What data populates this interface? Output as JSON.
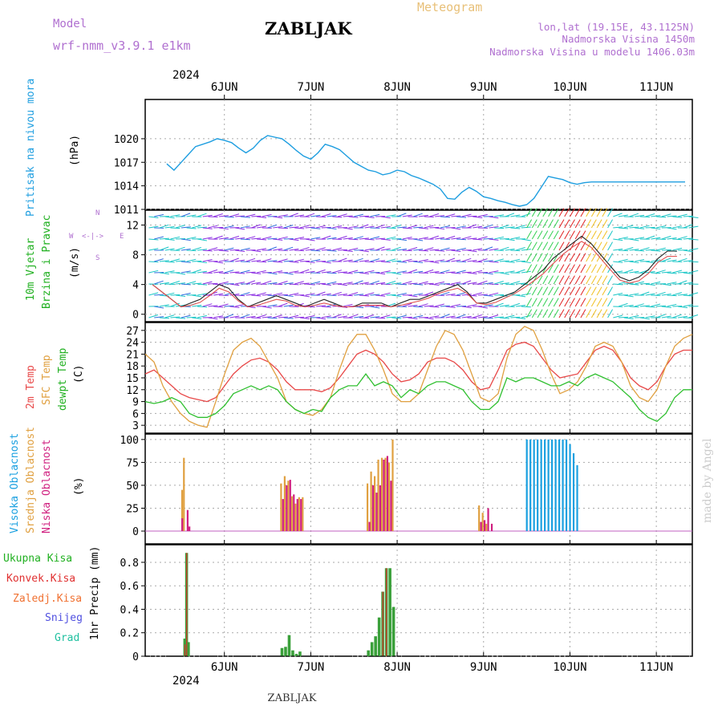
{
  "header": {
    "model_label": "Model",
    "model_name": "wrf-nmm_v3.9.1 e1km",
    "title": "ZABLJAK",
    "subtitle": "Meteogram",
    "coords": "lon,lat (19.15E, 43.1125N)",
    "altitude": "Nadmorska Visina 1450m",
    "model_altitude": "Nadmorska Visina u modelu 1406.03m",
    "year_top": "2024",
    "year_bottom": "2024",
    "footer_title": "ZABLJAK",
    "watermark": "made by Angel"
  },
  "days": [
    "6JUN",
    "7JUN",
    "8JUN",
    "9JUN",
    "10JUN",
    "11JUN"
  ],
  "colors": {
    "pressure": "#1e9ee0",
    "temp2m": "#e84848",
    "sfc": "#e0a040",
    "dew": "#30c030",
    "cloud_high": "#1aa0e0",
    "cloud_mid": "#e0a040",
    "cloud_low": "#d02080",
    "precip_total": "#3aa03a",
    "precip_conv": "#e03030",
    "grid": "#aaaaaa"
  },
  "legend": {
    "pressure": [
      "Pritisak na nivou mora",
      "(hPa)"
    ],
    "wind": [
      "10m Vjetar",
      "Brzina i Pravac",
      "(m/s)"
    ],
    "compass": [
      "N",
      "W",
      "E",
      "S"
    ],
    "temp": [
      "2m Temp",
      "SFC Temp",
      "dewpt Temp",
      "(C)"
    ],
    "cloud": [
      "Visoka Oblacnost",
      "Srednja Oblacnost",
      "Niska Oblacnost",
      "(%)"
    ],
    "precip": [
      "Ukupna Kisa",
      "Konvek.Kisa",
      "Zaledj.Kisa",
      "Snijeg",
      "Grad",
      "1hr Precip (mm)"
    ]
  },
  "chart_data": [
    {
      "type": "line",
      "panel": "pressure",
      "ylabel": "(hPa)",
      "yticks": [
        1011,
        1014,
        1017,
        1020
      ],
      "ylim": [
        1011,
        1025
      ],
      "x_hours": [
        0,
        2,
        4,
        6,
        8,
        10,
        12,
        14,
        16,
        18,
        20,
        22,
        24,
        26,
        28,
        30,
        32,
        34,
        36,
        38,
        40,
        42,
        44,
        46,
        48,
        50,
        52,
        54,
        56,
        58,
        60,
        62,
        64,
        66,
        68,
        70,
        72,
        74,
        76,
        78,
        80,
        82,
        84,
        86,
        88,
        90,
        92,
        94,
        96,
        98,
        100,
        102,
        104,
        106,
        108,
        110,
        112,
        114,
        116,
        118,
        120,
        122,
        124,
        126,
        128,
        130,
        132,
        134,
        136,
        138,
        140,
        142,
        144
      ],
      "values": [
        1016.8,
        1016.0,
        1017.0,
        1018.0,
        1019.0,
        1019.3,
        1019.6,
        1020.0,
        1019.8,
        1019.5,
        1018.8,
        1018.2,
        1018.8,
        1019.8,
        1020.4,
        1020.2,
        1020.0,
        1019.3,
        1018.5,
        1017.8,
        1017.4,
        1018.2,
        1019.3,
        1019.0,
        1018.6,
        1017.8,
        1017.0,
        1016.5,
        1016.0,
        1015.8,
        1015.4,
        1015.6,
        1016.0,
        1015.8,
        1015.3,
        1015.0,
        1014.6,
        1014.2,
        1013.6,
        1012.4,
        1012.3,
        1013.2,
        1013.8,
        1013.3,
        1012.6,
        1012.4,
        1012.1,
        1011.9,
        1011.6,
        1011.4,
        1011.6,
        1012.4,
        1013.8,
        1015.2,
        1015.0,
        1014.8,
        1014.4,
        1014.2,
        1014.4,
        1014.5,
        1014.5,
        1014.5,
        1014.5,
        1014.5,
        1014.5,
        1014.5,
        1014.5,
        1014.5,
        1014.5,
        1014.5,
        1014.5,
        1014.5,
        1014.5
      ]
    },
    {
      "type": "line",
      "panel": "wind",
      "ylabel": "(m/s)",
      "yticks": [
        0,
        4,
        8,
        12
      ],
      "ylim": [
        -1,
        14
      ],
      "series": [
        {
          "name": "gust",
          "values": [
            4,
            3,
            2,
            1,
            1.5,
            2,
            3,
            4,
            3.5,
            2,
            1,
            1.5,
            2,
            2.5,
            2,
            1.5,
            1,
            1.5,
            2,
            1.5,
            1,
            1,
            1.5,
            1.5,
            1.5,
            1,
            1.5,
            2,
            2,
            2.5,
            3,
            3.5,
            4,
            3,
            1.5,
            1.5,
            2,
            2.5,
            3,
            4,
            5,
            6,
            7.5,
            8.5,
            9.5,
            10.5,
            9.5,
            8,
            6.5,
            5,
            4.5,
            5,
            6,
            7.5,
            8.5,
            8.5
          ]
        },
        {
          "name": "wind",
          "values": [
            4,
            3,
            2,
            1,
            1.2,
            1.6,
            2.5,
            3.5,
            3,
            1.8,
            1,
            1.2,
            1.6,
            2,
            1.8,
            1.2,
            1,
            1.2,
            1.5,
            1.2,
            1,
            1,
            1.2,
            1.2,
            1.2,
            1,
            1.2,
            1.5,
            1.8,
            2.2,
            2.8,
            3.2,
            3.5,
            2.8,
            1.5,
            1.3,
            1.6,
            2.2,
            2.8,
            3.6,
            4.5,
            5.5,
            6.8,
            8,
            9,
            9.8,
            9,
            7.5,
            6,
            4.6,
            4.2,
            4.5,
            5.5,
            7,
            7.8,
            7.8
          ]
        }
      ]
    },
    {
      "type": "line",
      "panel": "temperature",
      "ylabel": "(C)",
      "yticks": [
        3,
        6,
        9,
        12,
        15,
        18,
        21,
        24,
        27
      ],
      "ylim": [
        1,
        29
      ],
      "x_hours_step": 2,
      "series": [
        {
          "name": "2m Temp",
          "values": [
            16,
            17,
            15,
            13,
            11,
            10,
            9.5,
            9,
            10,
            13,
            16,
            18,
            19.5,
            20,
            19,
            17,
            14,
            12,
            12,
            12,
            11.5,
            12.5,
            15,
            18,
            21,
            22,
            21,
            19,
            16,
            14,
            14.5,
            16,
            19,
            20,
            20,
            19,
            17,
            14,
            12,
            12.5,
            17,
            22,
            23.5,
            24,
            23,
            20,
            17,
            15,
            15.5,
            16,
            19,
            22,
            23,
            22,
            19,
            15,
            13,
            12,
            14,
            18,
            21,
            22,
            22
          ]
        },
        {
          "name": "SFC Temp",
          "values": [
            21,
            19,
            13,
            9,
            6,
            4,
            3,
            2.5,
            9,
            16,
            22,
            24,
            25,
            23,
            19,
            15,
            9,
            7,
            6,
            5.5,
            7,
            10,
            17,
            23,
            26,
            26,
            22,
            17,
            11,
            9,
            9,
            11,
            17,
            23,
            27,
            26,
            22,
            16,
            10,
            9,
            11,
            20,
            26,
            28,
            27,
            22,
            16,
            11,
            12,
            14,
            18,
            23,
            24,
            23,
            19,
            13,
            10,
            9,
            12,
            18,
            23,
            25,
            26
          ]
        },
        {
          "name": "dewpt Temp",
          "values": [
            9,
            8.5,
            9,
            10,
            9,
            6,
            5,
            5,
            6,
            8,
            11,
            12,
            13,
            12,
            13,
            12,
            9,
            7,
            6,
            7,
            6.5,
            10,
            12,
            13,
            13,
            16,
            13,
            14,
            13,
            10,
            12,
            11,
            13,
            14,
            14,
            13,
            12,
            9,
            7,
            7,
            9,
            15,
            14,
            15,
            15,
            14,
            13,
            13,
            14,
            13,
            15,
            16,
            15,
            14,
            12,
            10,
            7,
            5,
            4,
            6,
            10,
            12,
            12
          ]
        }
      ]
    },
    {
      "type": "bar",
      "panel": "clouds",
      "ylabel": "(%)",
      "yticks": [
        0,
        25,
        50,
        75,
        100
      ],
      "ylim": [
        0,
        100
      ],
      "series": [
        {
          "name": "Visoka Oblacnost",
          "x_hours": [
            96,
            97,
            98,
            99,
            100,
            101,
            102,
            103,
            104,
            105,
            106,
            107,
            108,
            109,
            110
          ],
          "values": [
            100,
            100,
            100,
            100,
            100,
            100,
            100,
            100,
            100,
            100,
            100,
            100,
            95,
            85,
            72
          ]
        },
        {
          "name": "Srednja Oblacnost",
          "x_hours": [
            0.5,
            1,
            28,
            29,
            30,
            31,
            32,
            33,
            34,
            52,
            53,
            54,
            55,
            56,
            57,
            58,
            59,
            60,
            83,
            84,
            85
          ],
          "values": [
            45,
            80,
            52,
            60,
            55,
            38,
            30,
            37,
            37,
            52,
            65,
            60,
            78,
            80,
            80,
            75,
            100,
            0,
            28,
            20,
            8
          ]
        },
        {
          "name": "Niska Oblacnost",
          "x_hours": [
            0,
            1.5,
            2,
            28,
            29,
            30,
            31,
            32,
            33,
            52,
            53,
            54,
            55,
            56,
            57,
            58,
            83,
            84,
            85,
            86
          ],
          "values": [
            14,
            23,
            5,
            35,
            50,
            56,
            40,
            35,
            35,
            10,
            50,
            42,
            50,
            78,
            82,
            55,
            10,
            12,
            25,
            8
          ]
        }
      ]
    },
    {
      "type": "bar",
      "panel": "precipitation",
      "ylabel": "1hr Precip (mm)",
      "yticks": [
        0,
        0.2,
        0.4,
        0.6,
        0.8
      ],
      "ylim": [
        0,
        0.95
      ],
      "series": [
        {
          "name": "Ukupna Kisa",
          "x_hours": [
            1,
            1.5,
            2,
            28,
            29,
            30,
            31,
            32,
            33,
            34,
            52,
            53,
            54,
            55,
            56,
            57,
            58,
            59
          ],
          "values": [
            0.15,
            0.88,
            0.12,
            0.07,
            0.08,
            0.18,
            0.05,
            0.02,
            0.04,
            0.0,
            0.05,
            0.12,
            0.17,
            0.33,
            0.55,
            0.75,
            0.75,
            0.42
          ]
        },
        {
          "name": "Konvek.Kisa",
          "x_hours": [
            1,
            1.5,
            56,
            57
          ],
          "values": [
            0.1,
            0.88,
            0.55,
            0.75
          ]
        }
      ]
    }
  ]
}
